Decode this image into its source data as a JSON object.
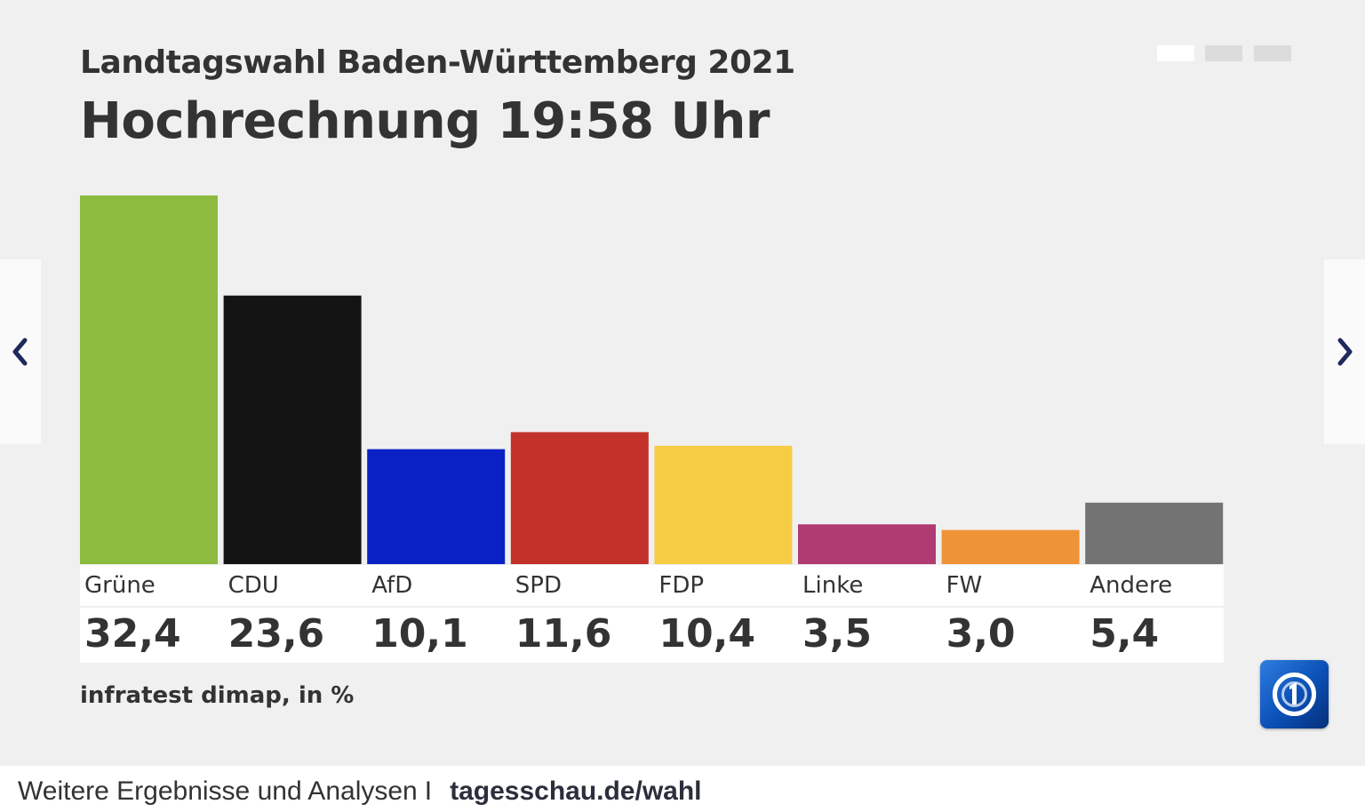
{
  "header": {
    "subtitle": "Landtagswahl Baden-Württemberg 2021",
    "title": "Hochrechnung 19:58 Uhr"
  },
  "pagination": {
    "active_index": 0,
    "count": 3,
    "active_color": "#ffffff",
    "inactive_color": "#dcdcdc"
  },
  "navigation": {
    "prev_icon": "chevron-left-icon",
    "next_icon": "chevron-right-icon",
    "icon_color": "#1e2a5a"
  },
  "chart_data": {
    "type": "bar",
    "title": "Hochrechnung 19:58 Uhr",
    "subtitle": "Landtagswahl Baden-Württemberg 2021",
    "categories": [
      "Grüne",
      "CDU",
      "AfD",
      "SPD",
      "FDP",
      "Linke",
      "FW",
      "Andere"
    ],
    "values": [
      32.4,
      23.6,
      10.1,
      11.6,
      10.4,
      3.5,
      3.0,
      5.4
    ],
    "value_labels": [
      "32,4",
      "23,6",
      "10,1",
      "11,6",
      "10,4",
      "3,5",
      "3,0",
      "5,4"
    ],
    "colors": [
      "#8cbb3f",
      "#141414",
      "#0a21c4",
      "#c3322a",
      "#f6cc45",
      "#b03a72",
      "#ef9337",
      "#737373"
    ],
    "ylim": [
      0,
      32.4
    ],
    "grid": false,
    "legend": "none"
  },
  "source": "infratest dimap, in %",
  "logo": "tagesschau-logo-icon",
  "footer": {
    "text": "Weitere Ergebnisse und Analysen",
    "separator": "I",
    "link": "tagesschau.de/wahl"
  }
}
